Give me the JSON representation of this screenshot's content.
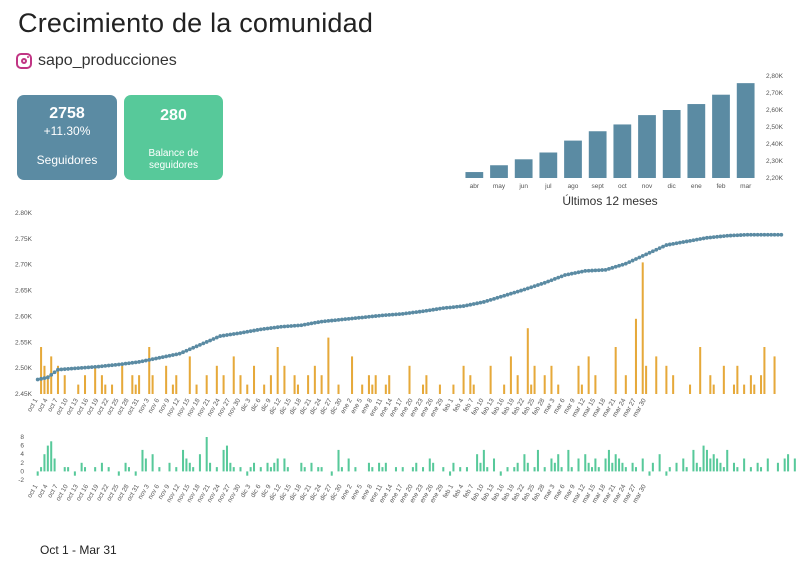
{
  "header": {
    "title": "Crecimiento de la comunidad",
    "account": "sapo_producciones",
    "instagram_color": "#c13584"
  },
  "cards": {
    "followers": {
      "value": "2758",
      "change": "+11.30%",
      "label": "Seguidores",
      "color": "#5b8ba3"
    },
    "balance": {
      "value": "280",
      "label": "Balance de seguidores",
      "color": "#57c99a"
    }
  },
  "footer": {
    "date_range": "Oct 1  - Mar 31"
  },
  "chart_data": [
    {
      "type": "bar",
      "name": "monthly",
      "color": "#5b8ba3",
      "title": "Últimos 12 meses",
      "categories": [
        "abr",
        "may",
        "jun",
        "jul",
        "ago",
        "sept",
        "oct",
        "nov",
        "dic",
        "ene",
        "feb",
        "mar"
      ],
      "values": [
        2235,
        2275,
        2310,
        2350,
        2420,
        2475,
        2515,
        2570,
        2600,
        2635,
        2690,
        2758
      ],
      "ylim": [
        2200,
        2800
      ],
      "yticks": [
        "2,20K",
        "2,30K",
        "2,40K",
        "2,50K",
        "2,60K",
        "2,70K",
        "2,80K"
      ]
    },
    {
      "type": "line",
      "name": "followers_daily",
      "line_color": "#5b8ba3",
      "bar_color": "#e6a93a",
      "ylim": [
        2450,
        2800
      ],
      "yticks": [
        "2.45K",
        "2.50K",
        "2.55K",
        "2.60K",
        "2.65K",
        "2.70K",
        "2.75K",
        "2.80K"
      ],
      "x_labels": [
        "oct 1",
        "oct 4",
        "oct 7",
        "oct 10",
        "oct 13",
        "oct 16",
        "oct 19",
        "oct 22",
        "oct 25",
        "oct 28",
        "oct 31",
        "nov 3",
        "nov 6",
        "nov 9",
        "nov 12",
        "nov 15",
        "nov 18",
        "nov 21",
        "nov 24",
        "nov 27",
        "nov 30",
        "dic 3",
        "dic 6",
        "dic 9",
        "dic 12",
        "dic 15",
        "dic 18",
        "dic 21",
        "dic 24",
        "dic 27",
        "dic 30",
        "ene 2",
        "ene 5",
        "ene 8",
        "ene 11",
        "ene 14",
        "ene 17",
        "ene 20",
        "ene 23",
        "ene 26",
        "ene 29",
        "feb 1",
        "feb 4",
        "feb 7",
        "feb 10",
        "feb 13",
        "feb 16",
        "feb 19",
        "feb 22",
        "feb 25",
        "feb 28",
        "mar 3",
        "mar 6",
        "mar 9",
        "mar 12",
        "mar 15",
        "mar 18",
        "mar 21",
        "mar 24",
        "mar 27",
        "mar 30"
      ],
      "line_anchors": [
        [
          0,
          2478
        ],
        [
          3,
          2482
        ],
        [
          6,
          2497
        ],
        [
          12,
          2500
        ],
        [
          18,
          2503
        ],
        [
          24,
          2507
        ],
        [
          30,
          2512
        ],
        [
          36,
          2520
        ],
        [
          42,
          2528
        ],
        [
          48,
          2545
        ],
        [
          54,
          2562
        ],
        [
          60,
          2568
        ],
        [
          66,
          2575
        ],
        [
          72,
          2580
        ],
        [
          78,
          2583
        ],
        [
          84,
          2590
        ],
        [
          90,
          2594
        ],
        [
          96,
          2598
        ],
        [
          102,
          2602
        ],
        [
          108,
          2605
        ],
        [
          114,
          2610
        ],
        [
          120,
          2616
        ],
        [
          126,
          2620
        ],
        [
          132,
          2628
        ],
        [
          138,
          2640
        ],
        [
          144,
          2652
        ],
        [
          150,
          2665
        ],
        [
          156,
          2680
        ],
        [
          162,
          2688
        ],
        [
          168,
          2690
        ],
        [
          174,
          2702
        ],
        [
          180,
          2720
        ],
        [
          186,
          2738
        ],
        [
          192,
          2745
        ],
        [
          198,
          2752
        ],
        [
          204,
          2756
        ],
        [
          210,
          2758
        ]
      ],
      "bar_values": [
        0,
        5,
        3,
        2,
        4,
        0,
        3,
        0,
        2,
        0,
        0,
        0,
        1,
        0,
        2,
        0,
        0,
        3,
        0,
        2,
        1,
        0,
        1,
        0,
        0,
        3,
        0,
        0,
        2,
        1,
        2,
        0,
        0,
        5,
        2,
        0,
        0,
        0,
        3,
        0,
        1,
        2,
        0,
        0,
        0,
        4,
        0,
        1,
        0,
        0,
        2,
        0,
        0,
        3,
        0,
        2,
        0,
        0,
        4,
        0,
        2,
        0,
        1,
        0,
        3,
        0,
        0,
        1,
        0,
        2,
        0,
        5,
        0,
        3,
        0,
        0,
        2,
        1,
        0,
        0,
        2,
        0,
        3,
        0,
        2,
        0,
        6,
        0,
        0,
        1,
        0,
        0,
        0,
        4,
        0,
        0,
        1,
        0,
        2,
        1,
        2,
        0,
        0,
        1,
        2,
        0,
        0,
        0,
        0,
        0,
        3,
        0,
        0,
        0,
        1,
        2,
        0,
        0,
        0,
        1,
        0,
        0,
        0,
        1,
        0,
        0,
        3,
        0,
        2,
        1,
        0,
        0,
        0,
        0,
        3,
        0,
        0,
        0,
        1,
        0,
        4,
        0,
        2,
        0,
        0,
        7,
        1,
        3,
        0,
        0,
        2,
        0,
        3,
        0,
        1,
        0,
        0,
        0,
        0,
        0,
        3,
        1,
        0,
        4,
        0,
        2,
        0,
        0,
        0,
        0,
        0,
        5,
        0,
        0,
        2,
        0,
        0,
        8,
        0,
        14,
        3,
        0,
        0,
        4,
        0,
        0,
        3,
        0,
        2,
        0,
        0,
        0,
        0,
        1,
        0,
        0,
        5,
        0,
        0,
        2,
        1,
        0,
        0,
        3,
        0,
        0,
        1,
        3,
        0,
        1,
        0,
        2,
        1,
        0,
        2,
        5,
        0,
        0,
        4,
        0,
        0
      ]
    },
    {
      "type": "bar",
      "name": "daily_balance",
      "color": "#57c99a",
      "ylim": [
        -2,
        8
      ],
      "yticks": [
        "-2",
        "0",
        "2",
        "4",
        "6",
        "8"
      ],
      "values": [
        -1,
        1,
        4,
        6,
        7,
        3,
        0,
        0,
        1,
        1,
        0,
        -1,
        0,
        2,
        1,
        0,
        0,
        1,
        0,
        2,
        0,
        1,
        0,
        0,
        -1,
        0,
        2,
        1,
        0,
        -1,
        0,
        5,
        3,
        0,
        4,
        0,
        1,
        0,
        0,
        2,
        0,
        1,
        0,
        5,
        3,
        2,
        1,
        0,
        4,
        0,
        8,
        2,
        0,
        1,
        0,
        5,
        6,
        2,
        1,
        0,
        1,
        0,
        -1,
        1,
        2,
        0,
        1,
        0,
        2,
        1,
        2,
        3,
        0,
        3,
        1,
        0,
        0,
        0,
        2,
        1,
        0,
        2,
        0,
        1,
        1,
        0,
        0,
        -1,
        0,
        5,
        1,
        0,
        3,
        0,
        1,
        0,
        0,
        0,
        2,
        1,
        0,
        2,
        1,
        2,
        0,
        0,
        1,
        0,
        1,
        0,
        0,
        1,
        2,
        0,
        1,
        0,
        3,
        2,
        0,
        0,
        1,
        0,
        -1,
        2,
        0,
        1,
        0,
        1,
        0,
        0,
        4,
        2,
        5,
        1,
        0,
        3,
        0,
        -1,
        0,
        1,
        0,
        1,
        2,
        0,
        4,
        2,
        0,
        1,
        5,
        0,
        1,
        0,
        3,
        2,
        4,
        1,
        0,
        5,
        1,
        0,
        3,
        0,
        4,
        2,
        1,
        3,
        1,
        0,
        3,
        5,
        2,
        4,
        3,
        2,
        1,
        0,
        2,
        1,
        0,
        3,
        0,
        -1,
        2,
        0,
        4,
        0,
        -1,
        1,
        0,
        2,
        0,
        3,
        1,
        0,
        5,
        2,
        1,
        6,
        5,
        3,
        4,
        3,
        2,
        1,
        5,
        0,
        2,
        1,
        0,
        3,
        0,
        1,
        0,
        2,
        1,
        0,
        3,
        0,
        0,
        2,
        0,
        3,
        4,
        0,
        3,
        0,
        1,
        0,
        0,
        4,
        0,
        1,
        1,
        0
      ]
    }
  ]
}
